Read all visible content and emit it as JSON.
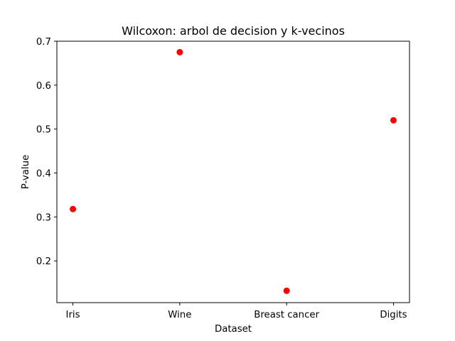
{
  "chart_data": {
    "type": "scatter",
    "title": "Wilcoxon: arbol de decision y k-vecinos",
    "xlabel": "Dataset",
    "ylabel": "P-value",
    "categories": [
      "Iris",
      "Wine",
      "Breast cancer",
      "Digits"
    ],
    "values": [
      0.318,
      0.675,
      0.132,
      0.52
    ],
    "ylim": [
      0.105,
      0.7
    ],
    "yticks": [
      0.2,
      0.3,
      0.4,
      0.5,
      0.6,
      0.7
    ],
    "ytick_labels": [
      "0.2",
      "0.3",
      "0.4",
      "0.5",
      "0.6",
      "0.7"
    ],
    "grid": false,
    "marker_color": "#ff0000"
  }
}
